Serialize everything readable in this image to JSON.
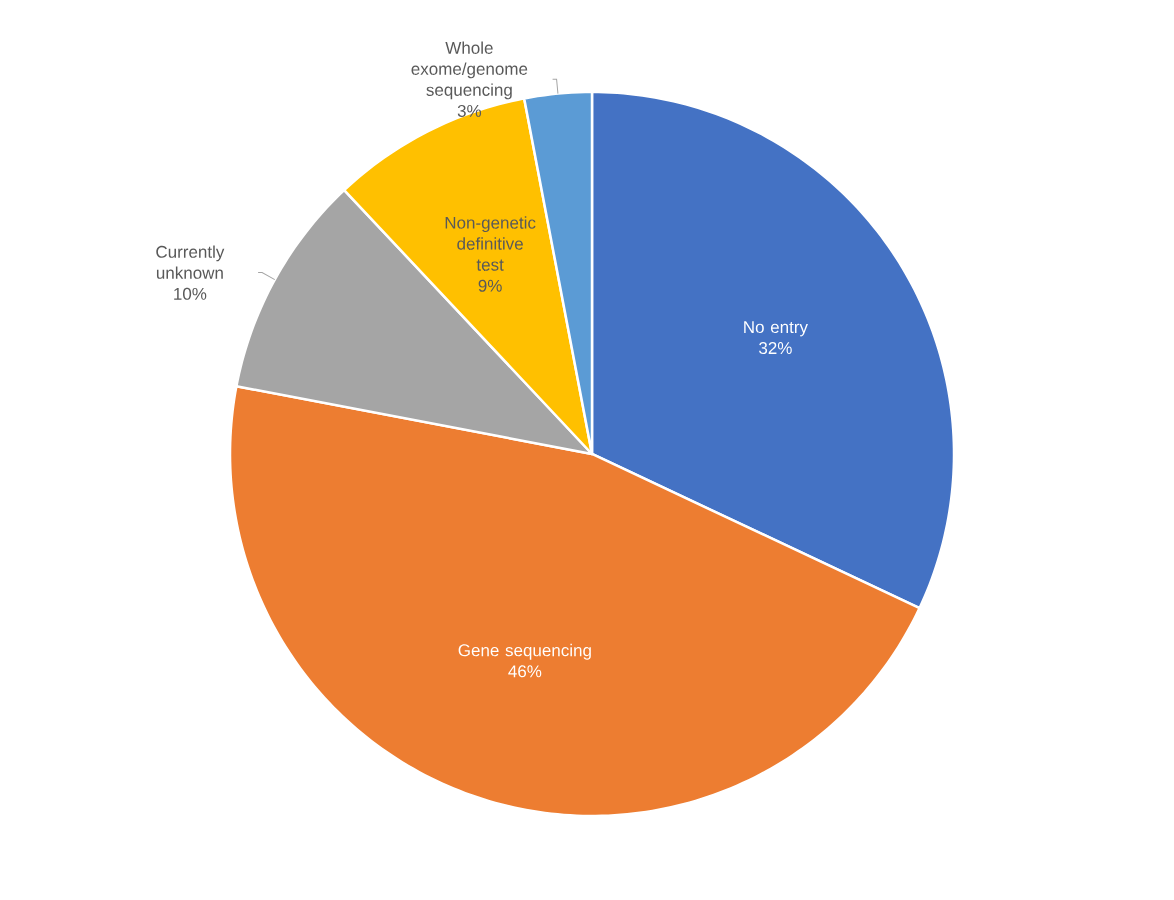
{
  "chart_data": {
    "type": "pie",
    "categories": [
      "No entry",
      "Gene sequencing",
      "Currently unknown",
      "Non-genetic definitive test",
      "Whole exome/genome sequencing"
    ],
    "values": [
      32,
      46,
      10,
      9,
      3
    ],
    "value_labels": [
      "32%",
      "46%",
      "10%",
      "9%",
      "3%"
    ],
    "colors": [
      "#4472c4",
      "#ed7d31",
      "#a5a5a5",
      "#ffc000",
      "#5b9bd5"
    ]
  }
}
